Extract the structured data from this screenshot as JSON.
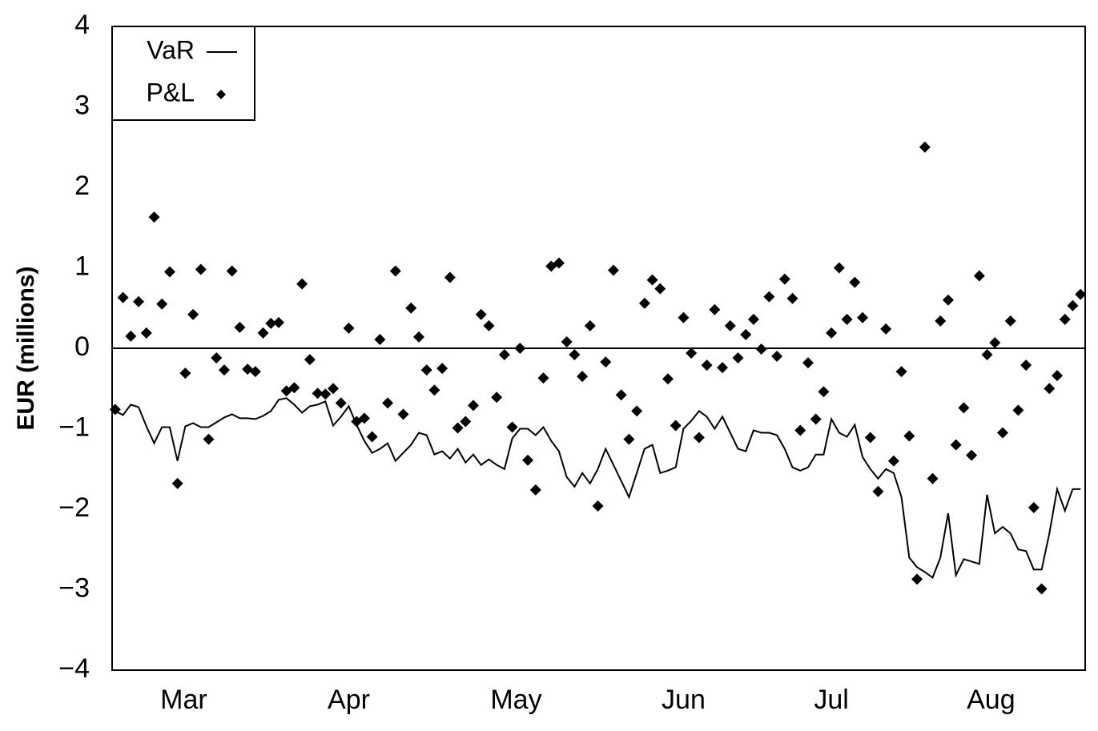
{
  "chart_data": {
    "type": "line-scatter",
    "ylabel": "EUR (millions)",
    "ylim": [
      -4,
      4
    ],
    "yticks": [
      {
        "value": -4,
        "label": "−4"
      },
      {
        "value": -3,
        "label": "−3"
      },
      {
        "value": -2,
        "label": "−2"
      },
      {
        "value": -1,
        "label": "−1"
      },
      0,
      1,
      2,
      3,
      4
    ],
    "xlim": [
      -0.4,
      124.6
    ],
    "xticks": [
      {
        "value": 8.8,
        "label": "Mar"
      },
      {
        "value": 30,
        "label": "Apr"
      },
      {
        "value": 51.5,
        "label": "May"
      },
      {
        "value": 73,
        "label": "Jun"
      },
      {
        "value": 92,
        "label": "Jul"
      },
      {
        "value": 112.5,
        "label": "Aug"
      }
    ],
    "hline": 0,
    "legend": "upper left",
    "series": [
      {
        "name": "VaR",
        "kind": "line",
        "color": "#000000",
        "values": [
          -0.78,
          -0.83,
          -0.7,
          -0.73,
          -0.97,
          -1.18,
          -0.98,
          -0.98,
          -1.4,
          -0.97,
          -0.93,
          -0.98,
          -0.98,
          -0.92,
          -0.86,
          -0.82,
          -0.87,
          -0.87,
          -0.88,
          -0.84,
          -0.78,
          -0.64,
          -0.62,
          -0.7,
          -0.8,
          -0.72,
          -0.7,
          -0.66,
          -0.96,
          -0.85,
          -0.72,
          -0.95,
          -1.15,
          -1.3,
          -1.25,
          -1.18,
          -1.4,
          -1.3,
          -1.2,
          -1.05,
          -1.08,
          -1.32,
          -1.28,
          -1.37,
          -1.25,
          -1.42,
          -1.32,
          -1.45,
          -1.38,
          -1.45,
          -1.5,
          -1.12,
          -1.0,
          -1.0,
          -1.08,
          -0.98,
          -1.15,
          -1.28,
          -1.6,
          -1.72,
          -1.55,
          -1.68,
          -1.5,
          -1.25,
          -1.45,
          -1.65,
          -1.85,
          -1.55,
          -1.25,
          -1.2,
          -1.55,
          -1.52,
          -1.48,
          -1.0,
          -0.9,
          -0.78,
          -0.85,
          -1.0,
          -0.85,
          -1.05,
          -1.25,
          -1.28,
          -1.02,
          -1.05,
          -1.05,
          -1.08,
          -1.25,
          -1.48,
          -1.52,
          -1.48,
          -1.32,
          -1.32,
          -0.88,
          -1.05,
          -1.1,
          -0.95,
          -1.35,
          -1.5,
          -1.62,
          -1.5,
          -1.55,
          -1.85,
          -2.6,
          -2.72,
          -2.78,
          -2.85,
          -2.6,
          -2.05,
          -2.82,
          -2.62,
          -2.65,
          -2.68,
          -1.82,
          -2.3,
          -2.22,
          -2.3,
          -2.5,
          -2.52,
          -2.75,
          -2.75,
          -2.3,
          -1.75,
          -2.02,
          -1.75,
          -1.75
        ]
      },
      {
        "name": "P&L",
        "kind": "scatter",
        "color": "#000000",
        "values": [
          -0.76,
          0.63,
          0.15,
          0.58,
          0.19,
          1.63,
          0.55,
          0.95,
          -1.68,
          -0.31,
          0.42,
          0.98,
          -1.13,
          -0.12,
          -0.27,
          0.96,
          0.26,
          -0.26,
          -0.29,
          0.19,
          0.31,
          0.32,
          -0.53,
          -0.49,
          0.8,
          -0.14,
          -0.56,
          -0.57,
          -0.5,
          -0.68,
          0.25,
          -0.91,
          -0.87,
          -1.1,
          0.11,
          -0.68,
          0.96,
          -0.82,
          0.5,
          0.14,
          -0.27,
          -0.52,
          -0.25,
          0.88,
          -0.99,
          -0.91,
          -0.71,
          0.42,
          0.28,
          -0.61,
          -0.08,
          -0.98,
          0.0,
          -1.39,
          -1.76,
          -0.37,
          1.02,
          1.06,
          0.08,
          -0.08,
          -0.35,
          0.28,
          -1.96,
          -0.17,
          0.97,
          -0.58,
          -1.13,
          -0.78,
          0.56,
          0.85,
          0.74,
          -0.38,
          -0.96,
          0.38,
          -0.06,
          -1.11,
          -0.21,
          0.48,
          -0.24,
          0.28,
          -0.12,
          0.17,
          0.36,
          -0.01,
          0.64,
          -0.1,
          0.86,
          0.62,
          -1.02,
          -0.18,
          -0.88,
          -0.54,
          0.19,
          1.0,
          0.36,
          0.82,
          0.38,
          -1.11,
          -1.78,
          0.24,
          -1.4,
          -0.29,
          -1.09,
          -2.87,
          2.5,
          -1.62,
          0.34,
          0.6,
          -1.2,
          -0.74,
          -1.33,
          0.9,
          -0.08,
          0.07,
          -1.05,
          0.34,
          -0.77,
          -0.21,
          -1.98,
          -2.99,
          -0.5,
          -0.34,
          0.36,
          0.53,
          0.67
        ]
      }
    ]
  }
}
